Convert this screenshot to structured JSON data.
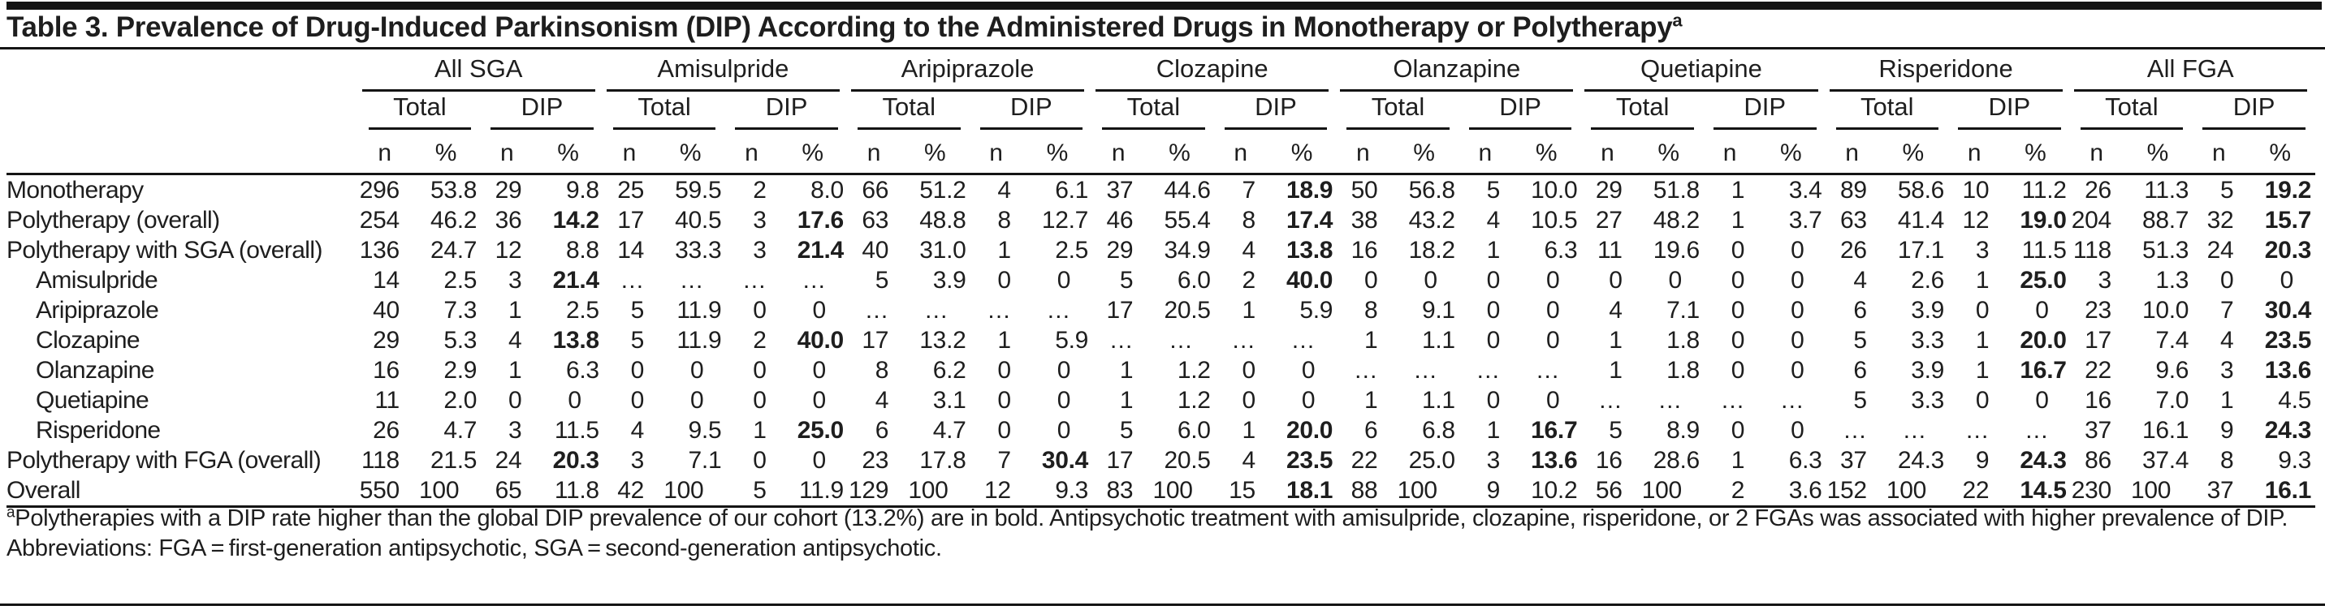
{
  "title": {
    "text": "Table 3. Prevalence of Drug-Induced Parkinsonism (DIP) According to the Administered Drugs in Monotherapy or Polytherapy",
    "superscript": "a"
  },
  "table": {
    "groups": [
      "All SGA",
      "Amisulpride",
      "Aripiprazole",
      "Clozapine",
      "Olanzapine",
      "Quetiapine",
      "Risperidone",
      "All FGA"
    ],
    "subgroups": [
      "Total",
      "DIP"
    ],
    "measures": [
      "n",
      "%"
    ],
    "rows": [
      {
        "label": "Monotherapy",
        "indent": false,
        "values": [
          "296",
          "53.8",
          "29",
          "9.8",
          "25",
          "59.5",
          "2",
          "8.0",
          "66",
          "51.2",
          "4",
          "6.1",
          "37",
          "44.6",
          "7",
          "18.9",
          "50",
          "56.8",
          "5",
          "10.0",
          "29",
          "51.8",
          "1",
          "3.4",
          "89",
          "58.6",
          "10",
          "11.2",
          "26",
          "11.3",
          "5",
          "19.2"
        ],
        "bold": [
          15,
          31
        ]
      },
      {
        "label": "Polytherapy (overall)",
        "indent": false,
        "values": [
          "254",
          "46.2",
          "36",
          "14.2",
          "17",
          "40.5",
          "3",
          "17.6",
          "63",
          "48.8",
          "8",
          "12.7",
          "46",
          "55.4",
          "8",
          "17.4",
          "38",
          "43.2",
          "4",
          "10.5",
          "27",
          "48.2",
          "1",
          "3.7",
          "63",
          "41.4",
          "12",
          "19.0",
          "204",
          "88.7",
          "32",
          "15.7"
        ],
        "bold": [
          3,
          7,
          15,
          27,
          31
        ]
      },
      {
        "label": "Polytherapy with SGA (overall)",
        "indent": false,
        "values": [
          "136",
          "24.7",
          "12",
          "8.8",
          "14",
          "33.3",
          "3",
          "21.4",
          "40",
          "31.0",
          "1",
          "2.5",
          "29",
          "34.9",
          "4",
          "13.8",
          "16",
          "18.2",
          "1",
          "6.3",
          "11",
          "19.6",
          "0",
          "0",
          "26",
          "17.1",
          "3",
          "11.5",
          "118",
          "51.3",
          "24",
          "20.3"
        ],
        "bold": [
          7,
          15,
          31
        ]
      },
      {
        "label": "Amisulpride",
        "indent": true,
        "values": [
          "14",
          "2.5",
          "3",
          "21.4",
          "…",
          "…",
          "…",
          "…",
          "5",
          "3.9",
          "0",
          "0",
          "5",
          "6.0",
          "2",
          "40.0",
          "0",
          "0",
          "0",
          "0",
          "0",
          "0",
          "0",
          "0",
          "4",
          "2.6",
          "1",
          "25.0",
          "3",
          "1.3",
          "0",
          "0"
        ],
        "bold": [
          3,
          15,
          27
        ]
      },
      {
        "label": "Aripiprazole",
        "indent": true,
        "values": [
          "40",
          "7.3",
          "1",
          "2.5",
          "5",
          "11.9",
          "0",
          "0",
          "…",
          "…",
          "…",
          "…",
          "17",
          "20.5",
          "1",
          "5.9",
          "8",
          "9.1",
          "0",
          "0",
          "4",
          "7.1",
          "0",
          "0",
          "6",
          "3.9",
          "0",
          "0",
          "23",
          "10.0",
          "7",
          "30.4"
        ],
        "bold": [
          31
        ]
      },
      {
        "label": "Clozapine",
        "indent": true,
        "values": [
          "29",
          "5.3",
          "4",
          "13.8",
          "5",
          "11.9",
          "2",
          "40.0",
          "17",
          "13.2",
          "1",
          "5.9",
          "…",
          "…",
          "…",
          "…",
          "1",
          "1.1",
          "0",
          "0",
          "1",
          "1.8",
          "0",
          "0",
          "5",
          "3.3",
          "1",
          "20.0",
          "17",
          "7.4",
          "4",
          "23.5"
        ],
        "bold": [
          3,
          7,
          27,
          31
        ]
      },
      {
        "label": "Olanzapine",
        "indent": true,
        "values": [
          "16",
          "2.9",
          "1",
          "6.3",
          "0",
          "0",
          "0",
          "0",
          "8",
          "6.2",
          "0",
          "0",
          "1",
          "1.2",
          "0",
          "0",
          "…",
          "…",
          "…",
          "…",
          "1",
          "1.8",
          "0",
          "0",
          "6",
          "3.9",
          "1",
          "16.7",
          "22",
          "9.6",
          "3",
          "13.6"
        ],
        "bold": [
          27,
          31
        ]
      },
      {
        "label": "Quetiapine",
        "indent": true,
        "values": [
          "11",
          "2.0",
          "0",
          "0",
          "0",
          "0",
          "0",
          "0",
          "4",
          "3.1",
          "0",
          "0",
          "1",
          "1.2",
          "0",
          "0",
          "1",
          "1.1",
          "0",
          "0",
          "…",
          "…",
          "…",
          "…",
          "5",
          "3.3",
          "0",
          "0",
          "16",
          "7.0",
          "1",
          "4.5"
        ],
        "bold": []
      },
      {
        "label": "Risperidone",
        "indent": true,
        "values": [
          "26",
          "4.7",
          "3",
          "11.5",
          "4",
          "9.5",
          "1",
          "25.0",
          "6",
          "4.7",
          "0",
          "0",
          "5",
          "6.0",
          "1",
          "20.0",
          "6",
          "6.8",
          "1",
          "16.7",
          "5",
          "8.9",
          "0",
          "0",
          "…",
          "…",
          "…",
          "…",
          "37",
          "16.1",
          "9",
          "24.3"
        ],
        "bold": [
          7,
          15,
          19,
          31
        ]
      },
      {
        "label": "Polytherapy with FGA (overall)",
        "indent": false,
        "values": [
          "118",
          "21.5",
          "24",
          "20.3",
          "3",
          "7.1",
          "0",
          "0",
          "23",
          "17.8",
          "7",
          "30.4",
          "17",
          "20.5",
          "4",
          "23.5",
          "22",
          "25.0",
          "3",
          "13.6",
          "16",
          "28.6",
          "1",
          "6.3",
          "37",
          "24.3",
          "9",
          "24.3",
          "86",
          "37.4",
          "8",
          "9.3"
        ],
        "bold": [
          3,
          11,
          15,
          19,
          27
        ]
      },
      {
        "label": "Overall",
        "indent": false,
        "values": [
          "550",
          "100",
          "65",
          "11.8",
          "42",
          "100",
          "5",
          "11.9",
          "129",
          "100",
          "12",
          "9.3",
          "83",
          "100",
          "15",
          "18.1",
          "88",
          "100",
          "9",
          "10.2",
          "56",
          "100",
          "2",
          "3.6",
          "152",
          "100",
          "22",
          "14.5",
          "230",
          "100",
          "37",
          "16.1"
        ],
        "bold": [
          15,
          27,
          31
        ]
      }
    ]
  },
  "footnotes": {
    "marker": "a",
    "note": "Polytherapies with a DIP rate higher than the global DIP prevalence of our cohort (13.2%) are in bold. Antipsychotic treatment with amisulpride, clozapine, risperidone, or 2 FGAs was associated with higher prevalence of DIP.",
    "abbreviations": "Abbreviations: FGA = first-generation antipsychotic, SGA = second-generation antipsychotic."
  },
  "colors": {
    "background": "#ffffff",
    "text": "#1e1e1e",
    "rule": "#141414"
  }
}
